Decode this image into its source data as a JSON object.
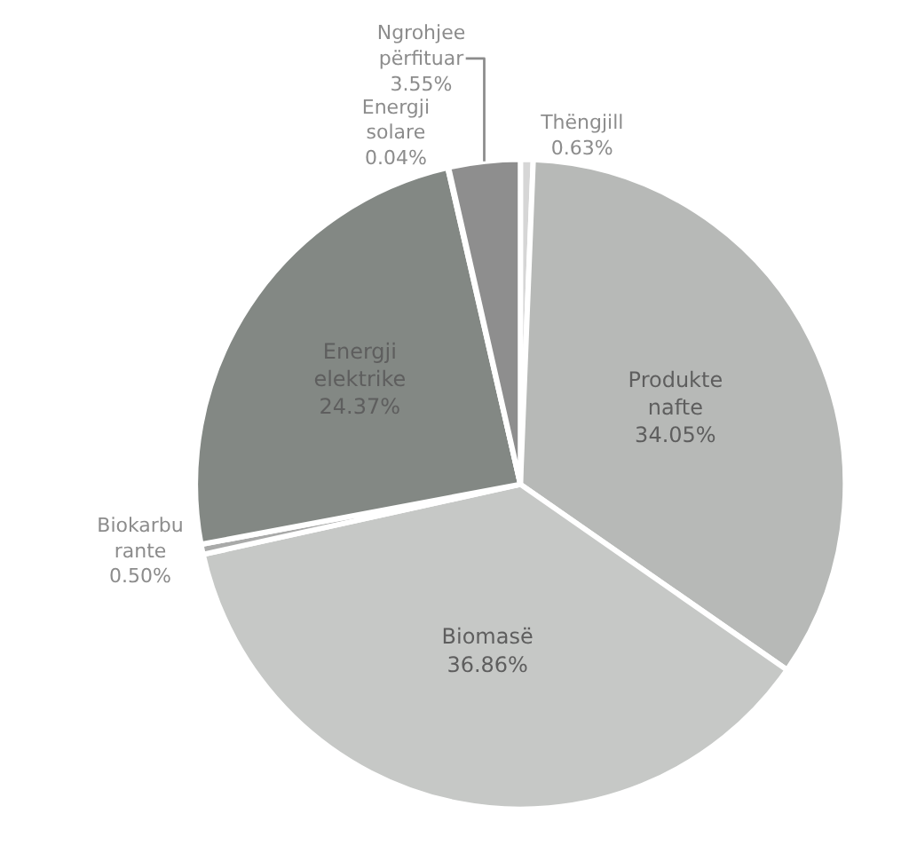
{
  "chart_data": {
    "type": "pie",
    "categories": [
      "Thëngjill",
      "Produkte nafte",
      "Biomasë",
      "Biokarbu rante",
      "Energji elektrike",
      "Energji solare",
      "Ngrohjee përfituar"
    ],
    "values": [
      0.63,
      34.05,
      36.86,
      0.5,
      24.37,
      0.04,
      3.55
    ],
    "value_labels": [
      "0.63%",
      "34.05%",
      "36.86%",
      "0.50%",
      "24.37%",
      "0.04%",
      "3.55%"
    ],
    "colors": [
      "#d6d6d6",
      "#b7b9b7",
      "#c6c8c6",
      "#a9aaa9",
      "#838884",
      "#777777",
      "#8e8e8e"
    ],
    "legend": false
  }
}
